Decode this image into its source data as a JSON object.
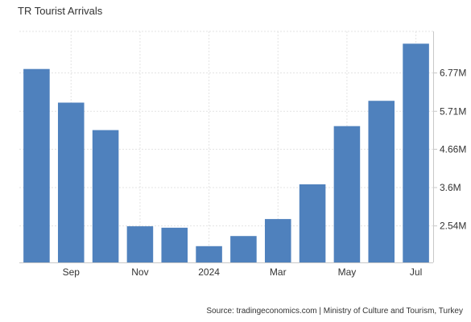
{
  "chart_data": {
    "type": "bar",
    "title": "TR Tourist Arrivals",
    "categories": [
      "2023-08",
      "2023-09",
      "2023-10",
      "2023-11",
      "2023-12",
      "2024-01",
      "2024-02",
      "2024-03",
      "2024-04",
      "2024-05",
      "2024-06",
      "2024-07"
    ],
    "x_tick_labels": [
      {
        "label": "Sep",
        "category": "2023-09"
      },
      {
        "label": "Nov",
        "category": "2023-11"
      },
      {
        "label": "2024",
        "category": "2024-01"
      },
      {
        "label": "Mar",
        "category": "2024-03"
      },
      {
        "label": "May",
        "category": "2024-05"
      },
      {
        "label": "Jul",
        "category": "2024-07"
      }
    ],
    "values": [
      6.88,
      5.95,
      5.19,
      2.53,
      2.49,
      1.98,
      2.26,
      2.73,
      3.69,
      5.3,
      6.0,
      7.58
    ],
    "y_unit": "M",
    "y_ticks": [
      2.54,
      3.6,
      4.66,
      5.71,
      6.77
    ],
    "y_tick_labels": [
      "2.54M",
      "3.6M",
      "4.66M",
      "5.71M",
      "6.77M"
    ],
    "ylim": [
      1.53,
      7.92
    ],
    "grid": true,
    "colors": {
      "bar": "#4f81bd",
      "grid": "#e3e3e3",
      "axis": "#c8c8c8"
    },
    "source": "Source: tradingeconomics.com | Ministry of Culture and Tourism, Turkey"
  }
}
